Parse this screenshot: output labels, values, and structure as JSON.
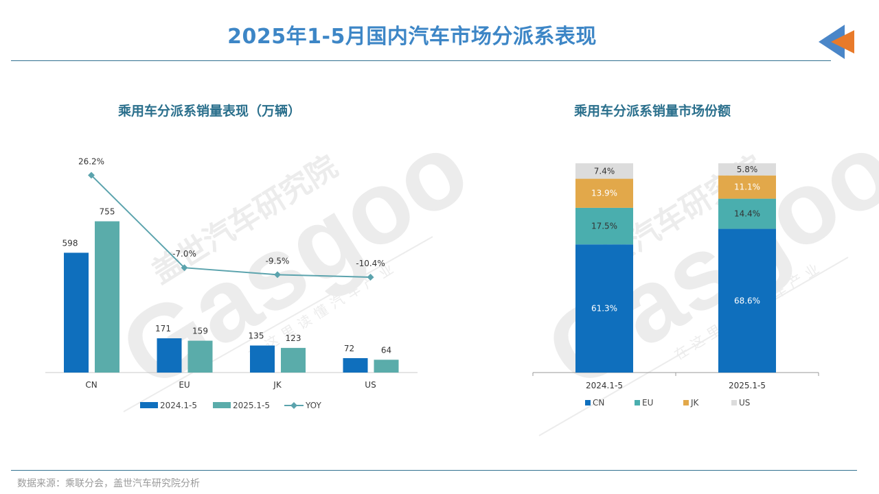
{
  "header": {
    "title": "2025年1-5月国内汽车市场分派系表现"
  },
  "footer": {
    "source": "数据来源：乘联分会，盖世汽车研究院分析"
  },
  "watermark": {
    "brand_cn": "盖世汽车研究院",
    "brand_en": "Gasgoo",
    "slogan": "在这里读懂汽车产业"
  },
  "colors": {
    "title": "#3d86c6",
    "series_2024": "#0f6fbd",
    "series_2025": "#5aacaa",
    "yoy_line": "#5ba3ad",
    "cn": "#0f6fbd",
    "eu": "#4aaeae",
    "jk": "#e2a84a",
    "us": "#dcdcdc"
  },
  "chart_data": [
    {
      "type": "bar",
      "title": "乘用车分派系销量表现（万辆）",
      "categories": [
        "CN",
        "EU",
        "JK",
        "US"
      ],
      "series": [
        {
          "name": "2024.1-5",
          "values": [
            598,
            171,
            135,
            72
          ],
          "labels": [
            "598",
            "171",
            "135",
            "72"
          ]
        },
        {
          "name": "2025.1-5",
          "values": [
            755,
            159,
            123,
            64
          ],
          "labels": [
            "755",
            "159",
            "123",
            "64"
          ]
        }
      ],
      "line_series": {
        "name": "YOY",
        "values": [
          26.2,
          -7.0,
          -9.5,
          -10.4
        ],
        "labels": [
          "26.2%",
          "-7.0%",
          "-9.5%",
          "-10.4%"
        ]
      },
      "legend": [
        "2024.1-5",
        "2025.1-5",
        "YOY"
      ],
      "legend_position": "bottom"
    },
    {
      "type": "bar",
      "stacked": true,
      "title": "乘用车分派系销量市场份额",
      "categories": [
        "2024.1-5",
        "2025.1-5"
      ],
      "series": [
        {
          "name": "CN",
          "values": [
            61.3,
            68.6
          ],
          "labels": [
            "61.3%",
            "68.6%"
          ]
        },
        {
          "name": "EU",
          "values": [
            17.5,
            14.4
          ],
          "labels": [
            "17.5%",
            "14.4%"
          ]
        },
        {
          "name": "JK",
          "values": [
            13.9,
            11.1
          ],
          "labels": [
            "13.9%",
            "11.1%"
          ]
        },
        {
          "name": "US",
          "values": [
            7.4,
            5.8
          ],
          "labels": [
            "7.4%",
            "5.8%"
          ]
        }
      ],
      "legend": [
        "CN",
        "EU",
        "JK",
        "US"
      ],
      "legend_position": "bottom"
    }
  ]
}
